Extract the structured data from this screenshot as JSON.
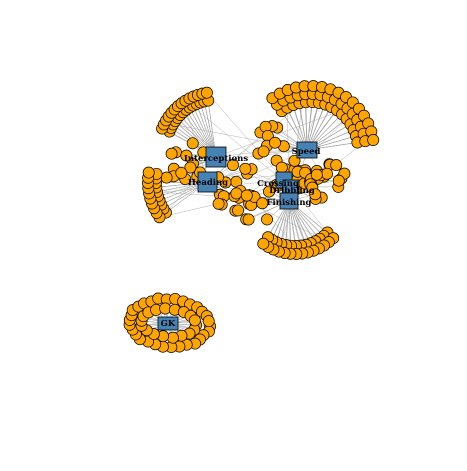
{
  "graph": {
    "type": "bipartite-network",
    "colors": {
      "background": "#ffffff",
      "player_fill": "#ffa500",
      "player_stroke": "#000000",
      "skill_fill": "#4682b4",
      "skill_stroke": "#000000",
      "edge": "#a0a0a0",
      "label": "#000000"
    },
    "skills": [
      {
        "id": "interceptions",
        "label": "Interceptions"
      },
      {
        "id": "heading",
        "label": "Heading"
      },
      {
        "id": "speed",
        "label": "Speed"
      },
      {
        "id": "crossing",
        "label": "Crossing"
      },
      {
        "id": "dribbling",
        "label": "Dribbling"
      },
      {
        "id": "finishing",
        "label": "Finishing"
      },
      {
        "id": "gk",
        "label": "GK"
      }
    ]
  }
}
